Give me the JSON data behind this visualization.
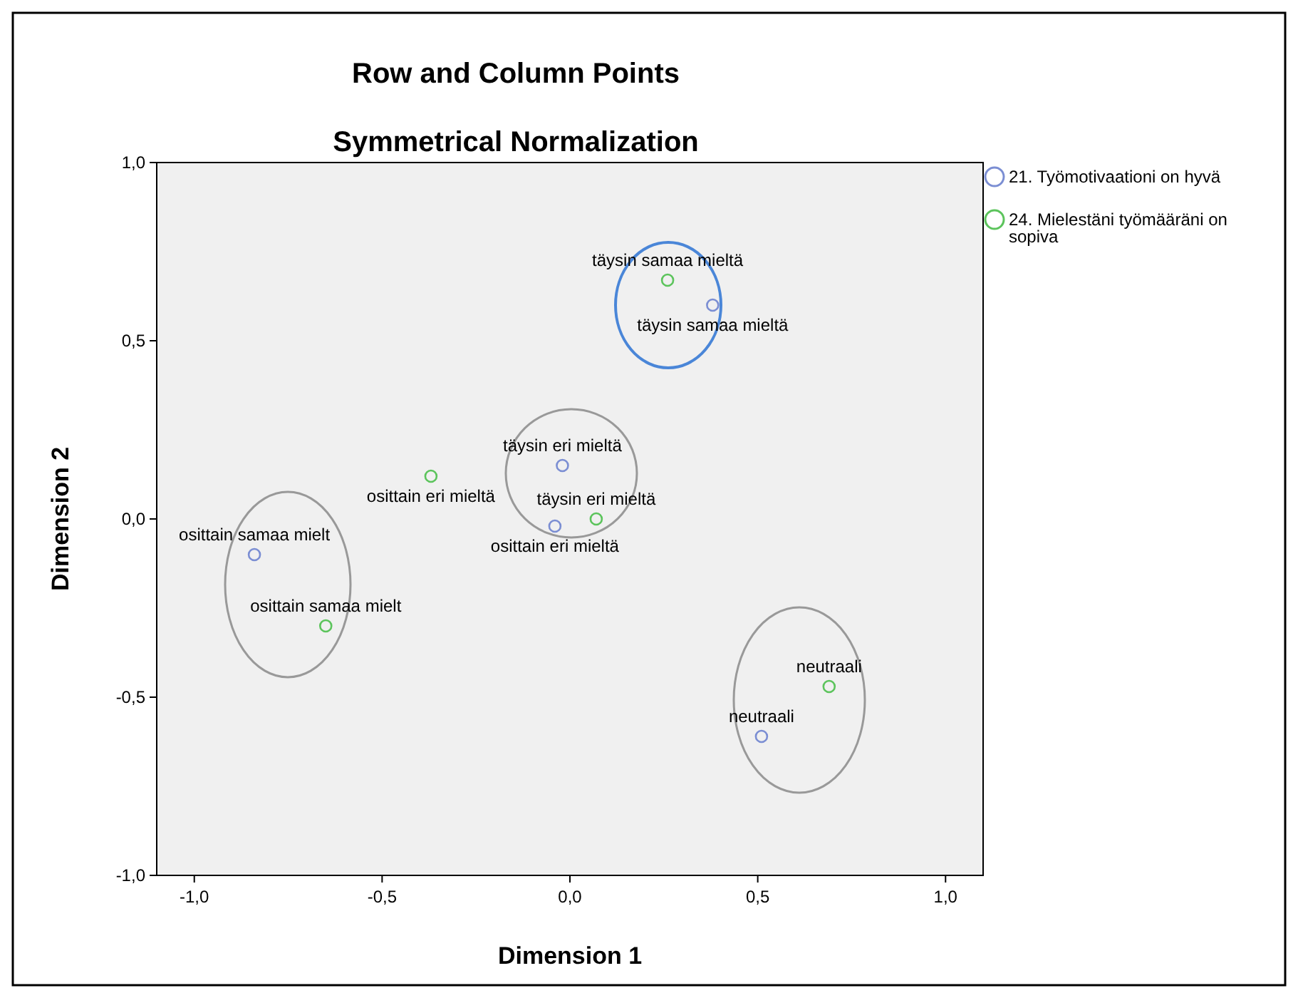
{
  "chart_data": {
    "type": "scatter",
    "title": "Row and Column Points",
    "subtitle": "Symmetrical Normalization",
    "xlabel": "Dimension 1",
    "ylabel": "Dimension 2",
    "xlim": [
      -1.1,
      1.1
    ],
    "ylim": [
      -1,
      1
    ],
    "xticks": [
      {
        "value": -1,
        "label": "-1,0"
      },
      {
        "value": -0.5,
        "label": "-0,5"
      },
      {
        "value": 0,
        "label": "0,0"
      },
      {
        "value": 0.5,
        "label": "0,5"
      },
      {
        "value": 1,
        "label": "1,0"
      }
    ],
    "yticks": [
      {
        "value": -1,
        "label": "-1,0"
      },
      {
        "value": -0.5,
        "label": "-0,5"
      },
      {
        "value": 0,
        "label": "0,0"
      },
      {
        "value": 0.5,
        "label": "0,5"
      },
      {
        "value": 1,
        "label": "1,0"
      }
    ],
    "series": [
      {
        "name": "21. Työmotivaationi on hyvä",
        "color": "#7b8ed3",
        "x": [
          0.38,
          -0.02,
          -0.04,
          -0.84,
          0.51
        ],
        "values": [
          0.6,
          0.15,
          -0.02,
          -0.1,
          -0.61
        ],
        "value_labels": [
          "täysin samaa mieltä",
          "täysin eri mieltä",
          "osittain eri mieltä",
          "osittain samaa mielt",
          "neutraali"
        ]
      },
      {
        "name": "24. Mielestäni työmääräni on sopiva",
        "color": "#5cc45c",
        "x": [
          0.26,
          -0.37,
          0.07,
          -0.65,
          0.69
        ],
        "values": [
          0.67,
          0.12,
          0.0,
          -0.3,
          -0.47
        ],
        "value_labels": [
          "täysin samaa mieltä",
          "osittain eri mieltä",
          "täysin eri mieltä",
          "osittain samaa mielt",
          "neutraali"
        ]
      }
    ],
    "marker": "circle",
    "grid": false,
    "legend": "top right"
  }
}
